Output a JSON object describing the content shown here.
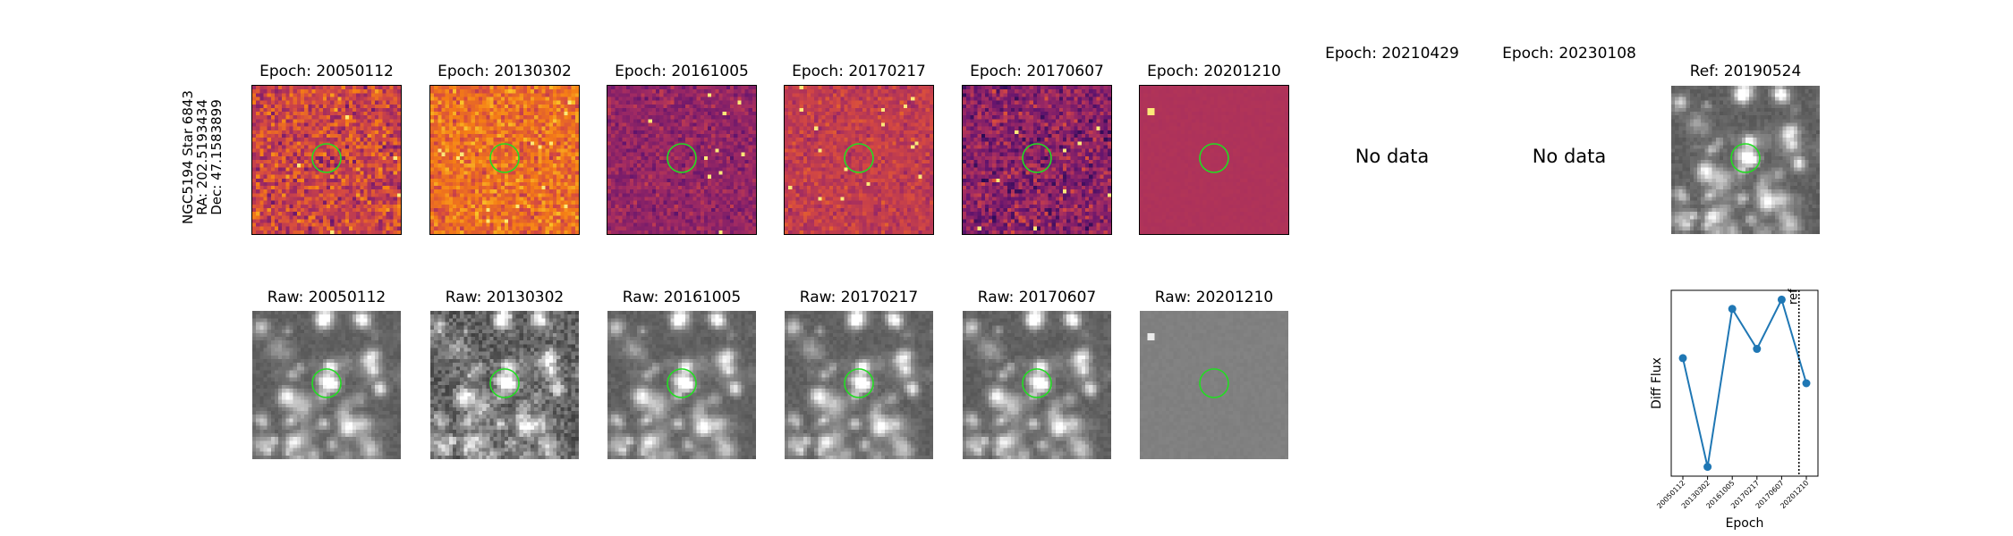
{
  "target": {
    "galaxy_star": "NGC5194 Star 6843",
    "ra": "RA: 202.5193434",
    "dec": "Dec: 47.1583899"
  },
  "diff_row": [
    {
      "title": "Epoch: 20050112",
      "has_data": true,
      "colormap": "magma",
      "style": "noisy",
      "seed": 11
    },
    {
      "title": "Epoch: 20130302",
      "has_data": true,
      "colormap": "magma",
      "style": "bright",
      "seed": 23
    },
    {
      "title": "Epoch: 20161005",
      "has_data": true,
      "colormap": "magma",
      "style": "dim",
      "seed": 37
    },
    {
      "title": "Epoch: 20170217",
      "has_data": true,
      "colormap": "magma",
      "style": "mid",
      "seed": 41
    },
    {
      "title": "Epoch: 20170607",
      "has_data": true,
      "colormap": "magma",
      "style": "dark",
      "seed": 53
    },
    {
      "title": "Epoch: 20201210",
      "has_data": true,
      "colormap": "magma",
      "style": "flat",
      "seed": 67
    },
    {
      "title": "Epoch: 20210429",
      "has_data": false,
      "nodata_text": "No data"
    },
    {
      "title": "Epoch: 20230108",
      "has_data": false,
      "nodata_text": "No data"
    }
  ],
  "ref_panel": {
    "title": "Ref: 20190524",
    "colormap": "gray",
    "style": "ref",
    "seed": 71
  },
  "raw_row": [
    {
      "title": "Raw: 20050112",
      "style": "field",
      "seed": 101
    },
    {
      "title": "Raw: 20130302",
      "style": "noisyfield",
      "seed": 113
    },
    {
      "title": "Raw: 20161005",
      "style": "field",
      "seed": 127
    },
    {
      "title": "Raw: 20170217",
      "style": "field",
      "seed": 131
    },
    {
      "title": "Raw: 20170607",
      "style": "field",
      "seed": 139
    },
    {
      "title": "Raw: 20201210",
      "style": "flatgray",
      "seed": 149
    }
  ],
  "colors": {
    "aperture": "#22dd22",
    "series": "#1f77b4",
    "frame": "#000000"
  },
  "chart_data": {
    "type": "line",
    "title": "",
    "xlabel": "Epoch",
    "ylabel": "Diff Flux",
    "categories": [
      "20050112",
      "20130302",
      "20161005",
      "20170217",
      "20170607",
      "20201210"
    ],
    "values": [
      0.42,
      -0.75,
      0.95,
      0.52,
      1.05,
      0.15
    ],
    "ylim": [
      -0.85,
      1.15
    ],
    "yticks_shown": false,
    "ref_marker": {
      "label": "ref",
      "position": 4.7,
      "style": "dotted"
    },
    "grid": false,
    "legend": "none"
  }
}
